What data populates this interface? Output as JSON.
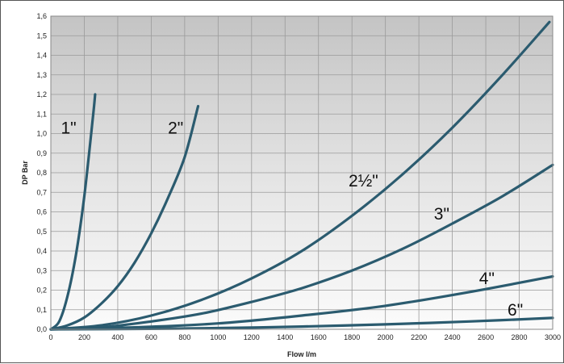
{
  "chart_data": {
    "type": "line",
    "xlabel": "Flow l/m",
    "ylabel": "DP Bar",
    "xlim": [
      0,
      3000
    ],
    "ylim": [
      0,
      1.6
    ],
    "x_ticks": [
      "0",
      "200",
      "400",
      "600",
      "800",
      "1000",
      "1200",
      "1400",
      "1600",
      "1800",
      "2000",
      "2200",
      "2400",
      "2600",
      "2800",
      "3000"
    ],
    "y_ticks": [
      "0,0",
      "0,1",
      "0,2",
      "0,3",
      "0,4",
      "0,5",
      "0,6",
      "0,7",
      "0,8",
      "0,9",
      "1,0",
      "1,1",
      "1,2",
      "1,3",
      "1,4",
      "1,5",
      "1,6"
    ],
    "grid": true,
    "line_color": "#2b5b6f",
    "series": [
      {
        "name": "1\"",
        "x": [
          0,
          50,
          100,
          150,
          200,
          250,
          265
        ],
        "y": [
          0,
          0.04,
          0.17,
          0.38,
          0.68,
          1.07,
          1.2
        ]
      },
      {
        "name": "2\"",
        "x": [
          0,
          100,
          200,
          300,
          400,
          500,
          600,
          700,
          800,
          880
        ],
        "y": [
          0,
          0.02,
          0.06,
          0.13,
          0.22,
          0.34,
          0.49,
          0.67,
          0.88,
          1.14
        ]
      },
      {
        "name": "2½\"",
        "x": [
          0,
          300,
          600,
          900,
          1200,
          1500,
          1800,
          2100,
          2400,
          2700,
          2980
        ],
        "y": [
          0,
          0.02,
          0.07,
          0.15,
          0.26,
          0.4,
          0.58,
          0.79,
          1.03,
          1.3,
          1.57
        ]
      },
      {
        "name": "3\"",
        "x": [
          0,
          300,
          600,
          900,
          1200,
          1500,
          1800,
          2100,
          2400,
          2700,
          3000
        ],
        "y": [
          0,
          0.01,
          0.04,
          0.08,
          0.14,
          0.21,
          0.3,
          0.41,
          0.54,
          0.68,
          0.84
        ]
      },
      {
        "name": "4\"",
        "x": [
          0,
          500,
          1000,
          1500,
          2000,
          2500,
          3000
        ],
        "y": [
          0,
          0.01,
          0.03,
          0.07,
          0.12,
          0.19,
          0.27
        ]
      },
      {
        "name": "6\"",
        "x": [
          0,
          500,
          1000,
          1500,
          2000,
          2500,
          3000
        ],
        "y": [
          0,
          0.002,
          0.006,
          0.014,
          0.025,
          0.04,
          0.058
        ]
      }
    ]
  }
}
